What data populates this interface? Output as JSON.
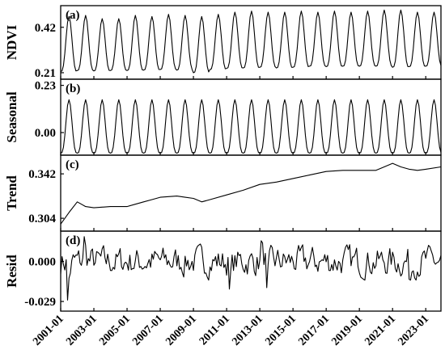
{
  "chart_data": {
    "type": "line",
    "layout": "stacked-panels",
    "x_axis": {
      "start": "2001-01",
      "end": "2023-12",
      "tick_labels": [
        "2001-01",
        "2003-01",
        "2005-01",
        "2007-01",
        "2009-01",
        "2011-01",
        "2013-01",
        "2015-01",
        "2017-01",
        "2019-01",
        "2021-01",
        "2023-01"
      ]
    },
    "panels": [
      {
        "tag": "(a)",
        "ylabel": "NDVI",
        "ylim": [
          0.18,
          0.52
        ],
        "yticks": [
          0.21,
          0.42
        ],
        "ytick_labels": [
          "0.21",
          "0.42"
        ],
        "series": {
          "kind": "seasonal",
          "peak_month": 7,
          "annual_min": [
            0.215,
            0.22,
            0.218,
            0.22,
            0.22,
            0.222,
            0.225,
            0.222,
            0.21,
            0.225,
            0.23,
            0.232,
            0.235,
            0.232,
            0.235,
            0.24,
            0.238,
            0.24,
            0.24,
            0.24,
            0.235,
            0.238,
            0.24
          ],
          "annual_max": [
            0.47,
            0.475,
            0.46,
            0.46,
            0.475,
            0.47,
            0.48,
            0.475,
            0.47,
            0.48,
            0.49,
            0.495,
            0.49,
            0.49,
            0.495,
            0.49,
            0.495,
            0.49,
            0.495,
            0.5,
            0.5,
            0.49,
            0.49
          ]
        }
      },
      {
        "tag": "(b)",
        "ylabel": "Seasonal",
        "ylim": [
          -0.11,
          0.26
        ],
        "yticks": [
          0.0,
          0.23
        ],
        "ytick_labels": [
          "0.00",
          "0.23"
        ],
        "series": {
          "kind": "seasonal",
          "peak_month": 7,
          "annual_min": [
            -0.1,
            -0.1,
            -0.1,
            -0.1,
            -0.1,
            -0.1,
            -0.1,
            -0.1,
            -0.1,
            -0.1,
            -0.1,
            -0.1,
            -0.1,
            -0.1,
            -0.1,
            -0.1,
            -0.1,
            -0.1,
            -0.1,
            -0.1,
            -0.1,
            -0.1,
            -0.1
          ],
          "annual_max": [
            0.16,
            0.16,
            0.16,
            0.16,
            0.16,
            0.16,
            0.16,
            0.16,
            0.16,
            0.16,
            0.16,
            0.16,
            0.16,
            0.16,
            0.16,
            0.16,
            0.16,
            0.16,
            0.16,
            0.16,
            0.16,
            0.16,
            0.16
          ]
        }
      },
      {
        "tag": "(c)",
        "ylabel": "Trend",
        "ylim": [
          0.293,
          0.358
        ],
        "yticks": [
          0.304,
          0.342
        ],
        "ytick_labels": [
          "0.304",
          "0.342"
        ],
        "series": {
          "kind": "points",
          "x": [
            "2001-01",
            "2001-07",
            "2002-01",
            "2002-07",
            "2003-01",
            "2004-01",
            "2005-01",
            "2005-07",
            "2006-01",
            "2006-07",
            "2007-01",
            "2008-01",
            "2008-07",
            "2009-01",
            "2009-07",
            "2010-01",
            "2011-01",
            "2012-01",
            "2013-01",
            "2014-01",
            "2015-01",
            "2016-01",
            "2017-01",
            "2018-01",
            "2019-01",
            "2020-01",
            "2020-07",
            "2021-01",
            "2021-07",
            "2022-01",
            "2022-07",
            "2023-01",
            "2023-12"
          ],
          "y": [
            0.299,
            0.309,
            0.318,
            0.314,
            0.313,
            0.314,
            0.314,
            0.316,
            0.318,
            0.32,
            0.322,
            0.323,
            0.322,
            0.321,
            0.318,
            0.32,
            0.324,
            0.328,
            0.333,
            0.335,
            0.338,
            0.341,
            0.344,
            0.345,
            0.345,
            0.345,
            0.348,
            0.351,
            0.348,
            0.346,
            0.345,
            0.346,
            0.348
          ]
        }
      },
      {
        "tag": "(d)",
        "ylabel": "Resid",
        "ylim": [
          -0.036,
          0.022
        ],
        "yticks": [
          -0.029,
          0.0
        ],
        "ytick_labels": [
          "-0.029",
          "0.000"
        ],
        "series": {
          "kind": "noise",
          "amplitude": 0.009,
          "extremes": [
            {
              "x": "2001-06",
              "y": -0.028
            },
            {
              "x": "2002-06",
              "y": 0.018
            },
            {
              "x": "2011-03",
              "y": -0.02
            },
            {
              "x": "2013-02",
              "y": 0.015
            },
            {
              "x": "2013-06",
              "y": -0.019
            },
            {
              "x": "2022-01",
              "y": -0.013
            }
          ]
        }
      }
    ]
  }
}
